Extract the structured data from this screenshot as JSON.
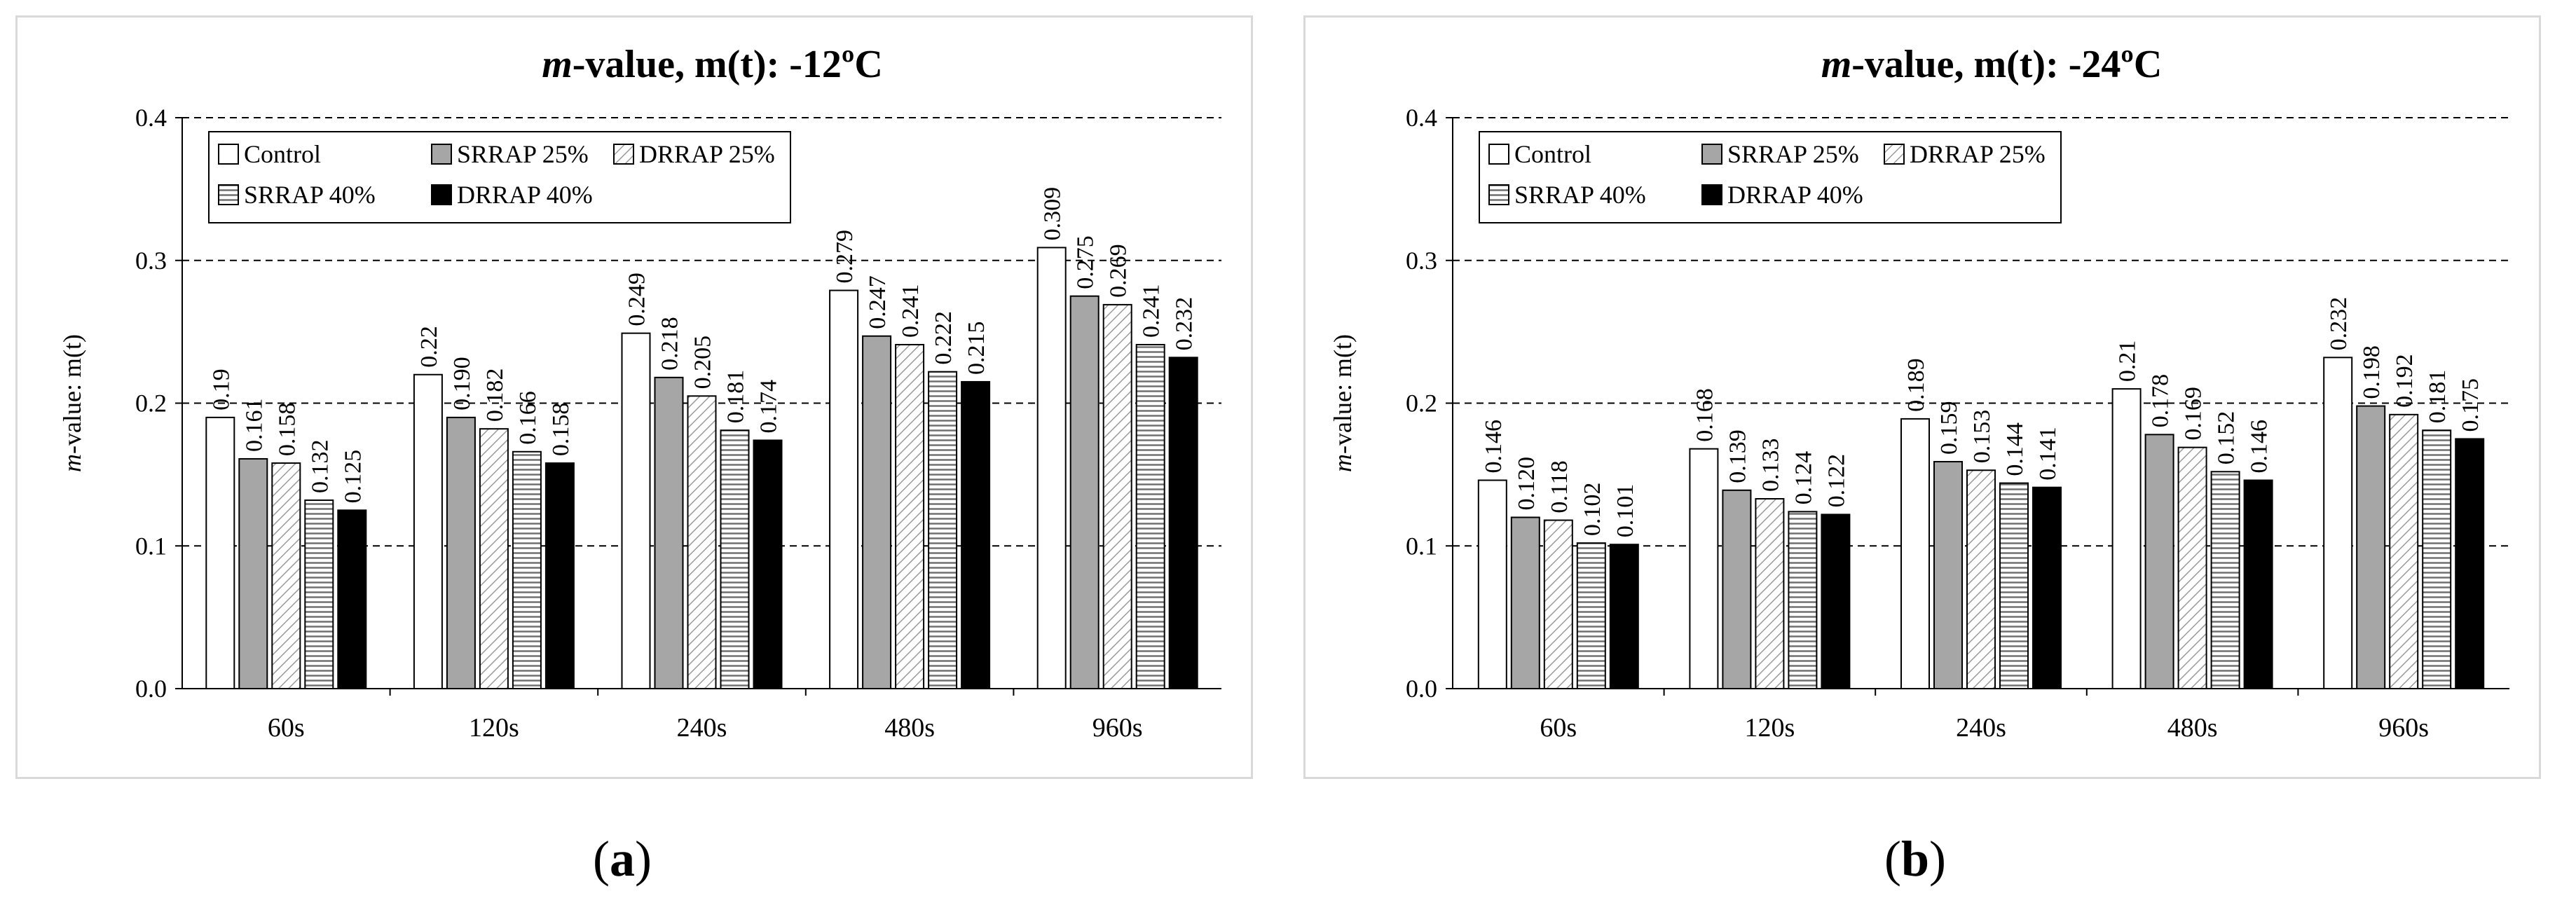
{
  "chart_data": [
    {
      "type": "bar",
      "title_italic": "m",
      "title_rest": "-value, m(t): -12ºC",
      "ylabel_italic": "m",
      "ylabel_rest": "-value: m(t)",
      "xlabel": "",
      "categories": [
        "60s",
        "120s",
        "240s",
        "480s",
        "960s"
      ],
      "ylim": [
        0,
        0.4
      ],
      "yticks": [
        "0.0",
        "0.1",
        "0.2",
        "0.3",
        "0.4"
      ],
      "grid": "dashed-horizontal",
      "legend_placement": "top-left",
      "series": [
        {
          "name": "Control",
          "values": [
            0.19,
            0.22,
            0.249,
            0.279,
            0.309
          ],
          "labels": [
            "0.19",
            "0.22",
            "0.249",
            "0.279",
            "0.309"
          ]
        },
        {
          "name": "SRRAP 25%",
          "values": [
            0.161,
            0.19,
            0.218,
            0.247,
            0.275
          ],
          "labels": [
            "0.161",
            "0.190",
            "0.218",
            "0.247",
            "0.275"
          ]
        },
        {
          "name": "DRRAP 25%",
          "values": [
            0.158,
            0.182,
            0.205,
            0.241,
            0.269
          ],
          "labels": [
            "0.158",
            "0.182",
            "0.205",
            "0.241",
            "0.269"
          ]
        },
        {
          "name": "SRRAP 40%",
          "values": [
            0.132,
            0.166,
            0.181,
            0.222,
            0.241
          ],
          "labels": [
            "0.132",
            "0.166",
            "0.181",
            "0.222",
            "0.241"
          ]
        },
        {
          "name": "DRRAP 40%",
          "values": [
            0.125,
            0.158,
            0.174,
            0.215,
            0.232
          ],
          "labels": [
            "0.125",
            "0.158",
            "0.174",
            "0.215",
            "0.232"
          ]
        }
      ]
    },
    {
      "type": "bar",
      "title_italic": "m",
      "title_rest": "-value, m(t): -24ºC",
      "ylabel_italic": "m",
      "ylabel_rest": "-value: m(t)",
      "xlabel": "",
      "categories": [
        "60s",
        "120s",
        "240s",
        "480s",
        "960s"
      ],
      "ylim": [
        0,
        0.4
      ],
      "yticks": [
        "0.0",
        "0.1",
        "0.2",
        "0.3",
        "0.4"
      ],
      "grid": "dashed-horizontal",
      "legend_placement": "top-left",
      "series": [
        {
          "name": "Control",
          "values": [
            0.146,
            0.168,
            0.189,
            0.21,
            0.232
          ],
          "labels": [
            "0.146",
            "0.168",
            "0.189",
            "0.21",
            "0.232"
          ]
        },
        {
          "name": "SRRAP 25%",
          "values": [
            0.12,
            0.139,
            0.159,
            0.178,
            0.198
          ],
          "labels": [
            "0.120",
            "0.139",
            "0.159",
            "0.178",
            "0.198"
          ]
        },
        {
          "name": "DRRAP 25%",
          "values": [
            0.118,
            0.133,
            0.153,
            0.169,
            0.192
          ],
          "labels": [
            "0.118",
            "0.133",
            "0.153",
            "0.169",
            "0.192"
          ]
        },
        {
          "name": "SRRAP 40%",
          "values": [
            0.102,
            0.124,
            0.144,
            0.152,
            0.181
          ],
          "labels": [
            "0.102",
            "0.124",
            "0.144",
            "0.152",
            "0.181"
          ]
        },
        {
          "name": "DRRAP 40%",
          "values": [
            0.101,
            0.122,
            0.141,
            0.146,
            0.175
          ],
          "labels": [
            "0.101",
            "0.122",
            "0.141",
            "0.146",
            "0.175"
          ]
        }
      ]
    }
  ],
  "captions": [
    "a",
    "b"
  ],
  "colors": {
    "control": "#ffffff",
    "srrap25": "#a6a6a6",
    "drrap25_hatch": "#9a9a9a",
    "srrap40_hatch": "#707070",
    "drrap40": "#000000",
    "grid": "#000000"
  }
}
